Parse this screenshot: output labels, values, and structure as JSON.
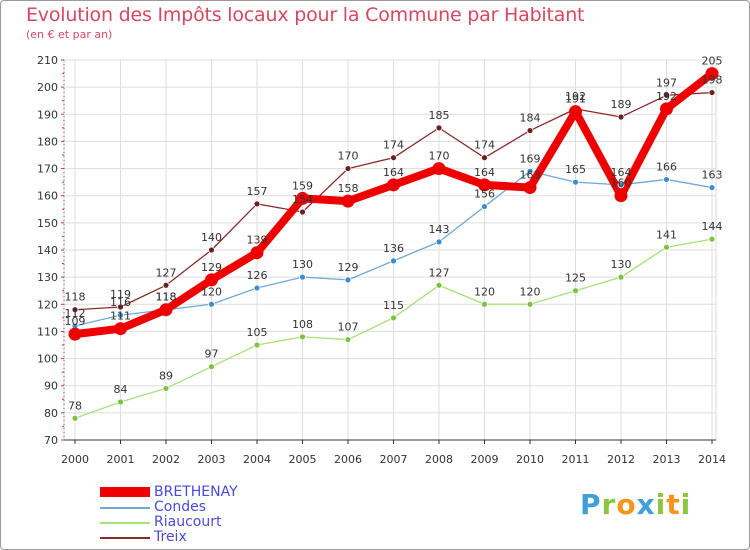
{
  "header": {
    "title": "Evolution des Impôts locaux pour la Commune par Habitant",
    "subtitle": "(en € et par an)"
  },
  "brand": {
    "letters": [
      "P",
      "r",
      "o",
      "x",
      "i",
      "t",
      "i"
    ],
    "colors": [
      "#3fa0d8",
      "#8cc63f",
      "#f7941d",
      "#3fa0d8",
      "#8cc63f",
      "#f7941d",
      "#8cc63f"
    ]
  },
  "chart_data": {
    "type": "line",
    "title": "Evolution des Impôts locaux pour la Commune par Habitant",
    "subtitle": "(en € et par an)",
    "xlabel": "",
    "ylabel": "",
    "x": [
      "2000",
      "2001",
      "2002",
      "2003",
      "2004",
      "2005",
      "2006",
      "2007",
      "2008",
      "2009",
      "2010",
      "2011",
      "2012",
      "2013",
      "2014"
    ],
    "ylim": [
      70,
      210
    ],
    "yticks": [
      70,
      80,
      90,
      100,
      110,
      120,
      130,
      140,
      150,
      160,
      170,
      180,
      190,
      200,
      210
    ],
    "grid": true,
    "legend_position": "bottom-left",
    "series": [
      {
        "name": "BRETHENAY",
        "color": "#ee0000",
        "marker_color": "#ee0000",
        "values": [
          109,
          111,
          118,
          129,
          139,
          159,
          158,
          164,
          170,
          164,
          163,
          191,
          160,
          192,
          205
        ],
        "labels": [
          "109",
          "111",
          "118",
          "129",
          "139",
          "159",
          "158",
          "164",
          "170",
          "164",
          "163",
          "191",
          "160",
          "192",
          "205"
        ]
      },
      {
        "name": "Condes",
        "color": "#6fa8d8",
        "marker_color": "#3b8fd0",
        "values": [
          112,
          116,
          118,
          120,
          126,
          130,
          129,
          136,
          143,
          156,
          169,
          165,
          164,
          166,
          163
        ],
        "labels": [
          "112",
          "116",
          "118",
          "120",
          "126",
          "130",
          "129",
          "136",
          "143",
          "156",
          "169",
          "165",
          "164",
          "166",
          "163"
        ]
      },
      {
        "name": "Riaucourt",
        "color": "#a8e07a",
        "marker_color": "#7dc242",
        "values": [
          78,
          84,
          89,
          97,
          105,
          108,
          107,
          115,
          127,
          120,
          120,
          125,
          130,
          141,
          144
        ],
        "labels": [
          "78",
          "84",
          "89",
          "97",
          "105",
          "108",
          "107",
          "115",
          "127",
          "120",
          "120",
          "125",
          "130",
          "141",
          "144"
        ]
      },
      {
        "name": "Treix",
        "color": "#8b2a2a",
        "marker_color": "#6b1f1f",
        "values": [
          118,
          119,
          127,
          140,
          157,
          154,
          170,
          174,
          185,
          174,
          184,
          192,
          189,
          197,
          198
        ],
        "labels": [
          "118",
          "119",
          "127",
          "140",
          "157",
          "154",
          "170",
          "174",
          "185",
          "174",
          "184",
          "192",
          "189",
          "197",
          "198"
        ]
      }
    ]
  }
}
